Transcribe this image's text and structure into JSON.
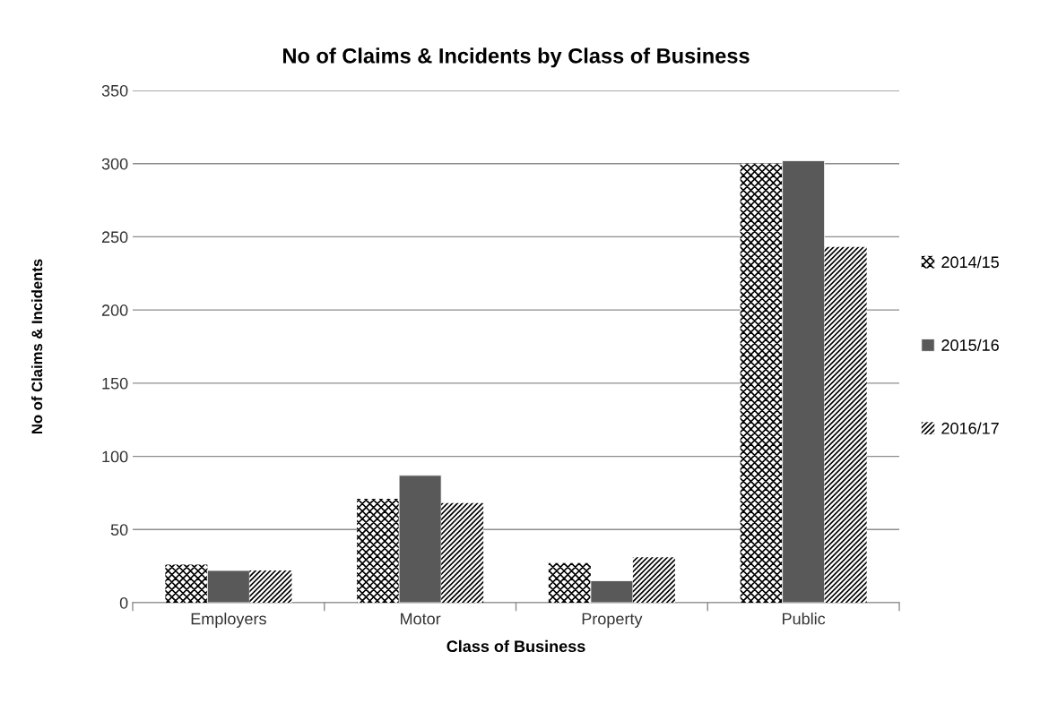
{
  "chart_data": {
    "type": "bar",
    "title": "No of Claims & Incidents by Class of Business",
    "xlabel": "Class of Business",
    "ylabel": "No of Claims & Incidents",
    "categories": [
      "Employers",
      "Motor",
      "Property",
      "Public"
    ],
    "series": [
      {
        "name": "2014/15",
        "color": "#000000",
        "values": [
          26,
          71,
          27,
          300
        ]
      },
      {
        "name": "2015/16",
        "color": "#595959",
        "values": [
          22,
          87,
          15,
          302
        ]
      },
      {
        "name": "2016/17",
        "color": "#000000",
        "values": [
          22,
          68,
          31,
          243
        ]
      }
    ],
    "ylim": [
      0,
      350
    ],
    "yticks": [
      0,
      50,
      100,
      150,
      200,
      250,
      300,
      350
    ],
    "grid": "y",
    "legend": "right"
  }
}
